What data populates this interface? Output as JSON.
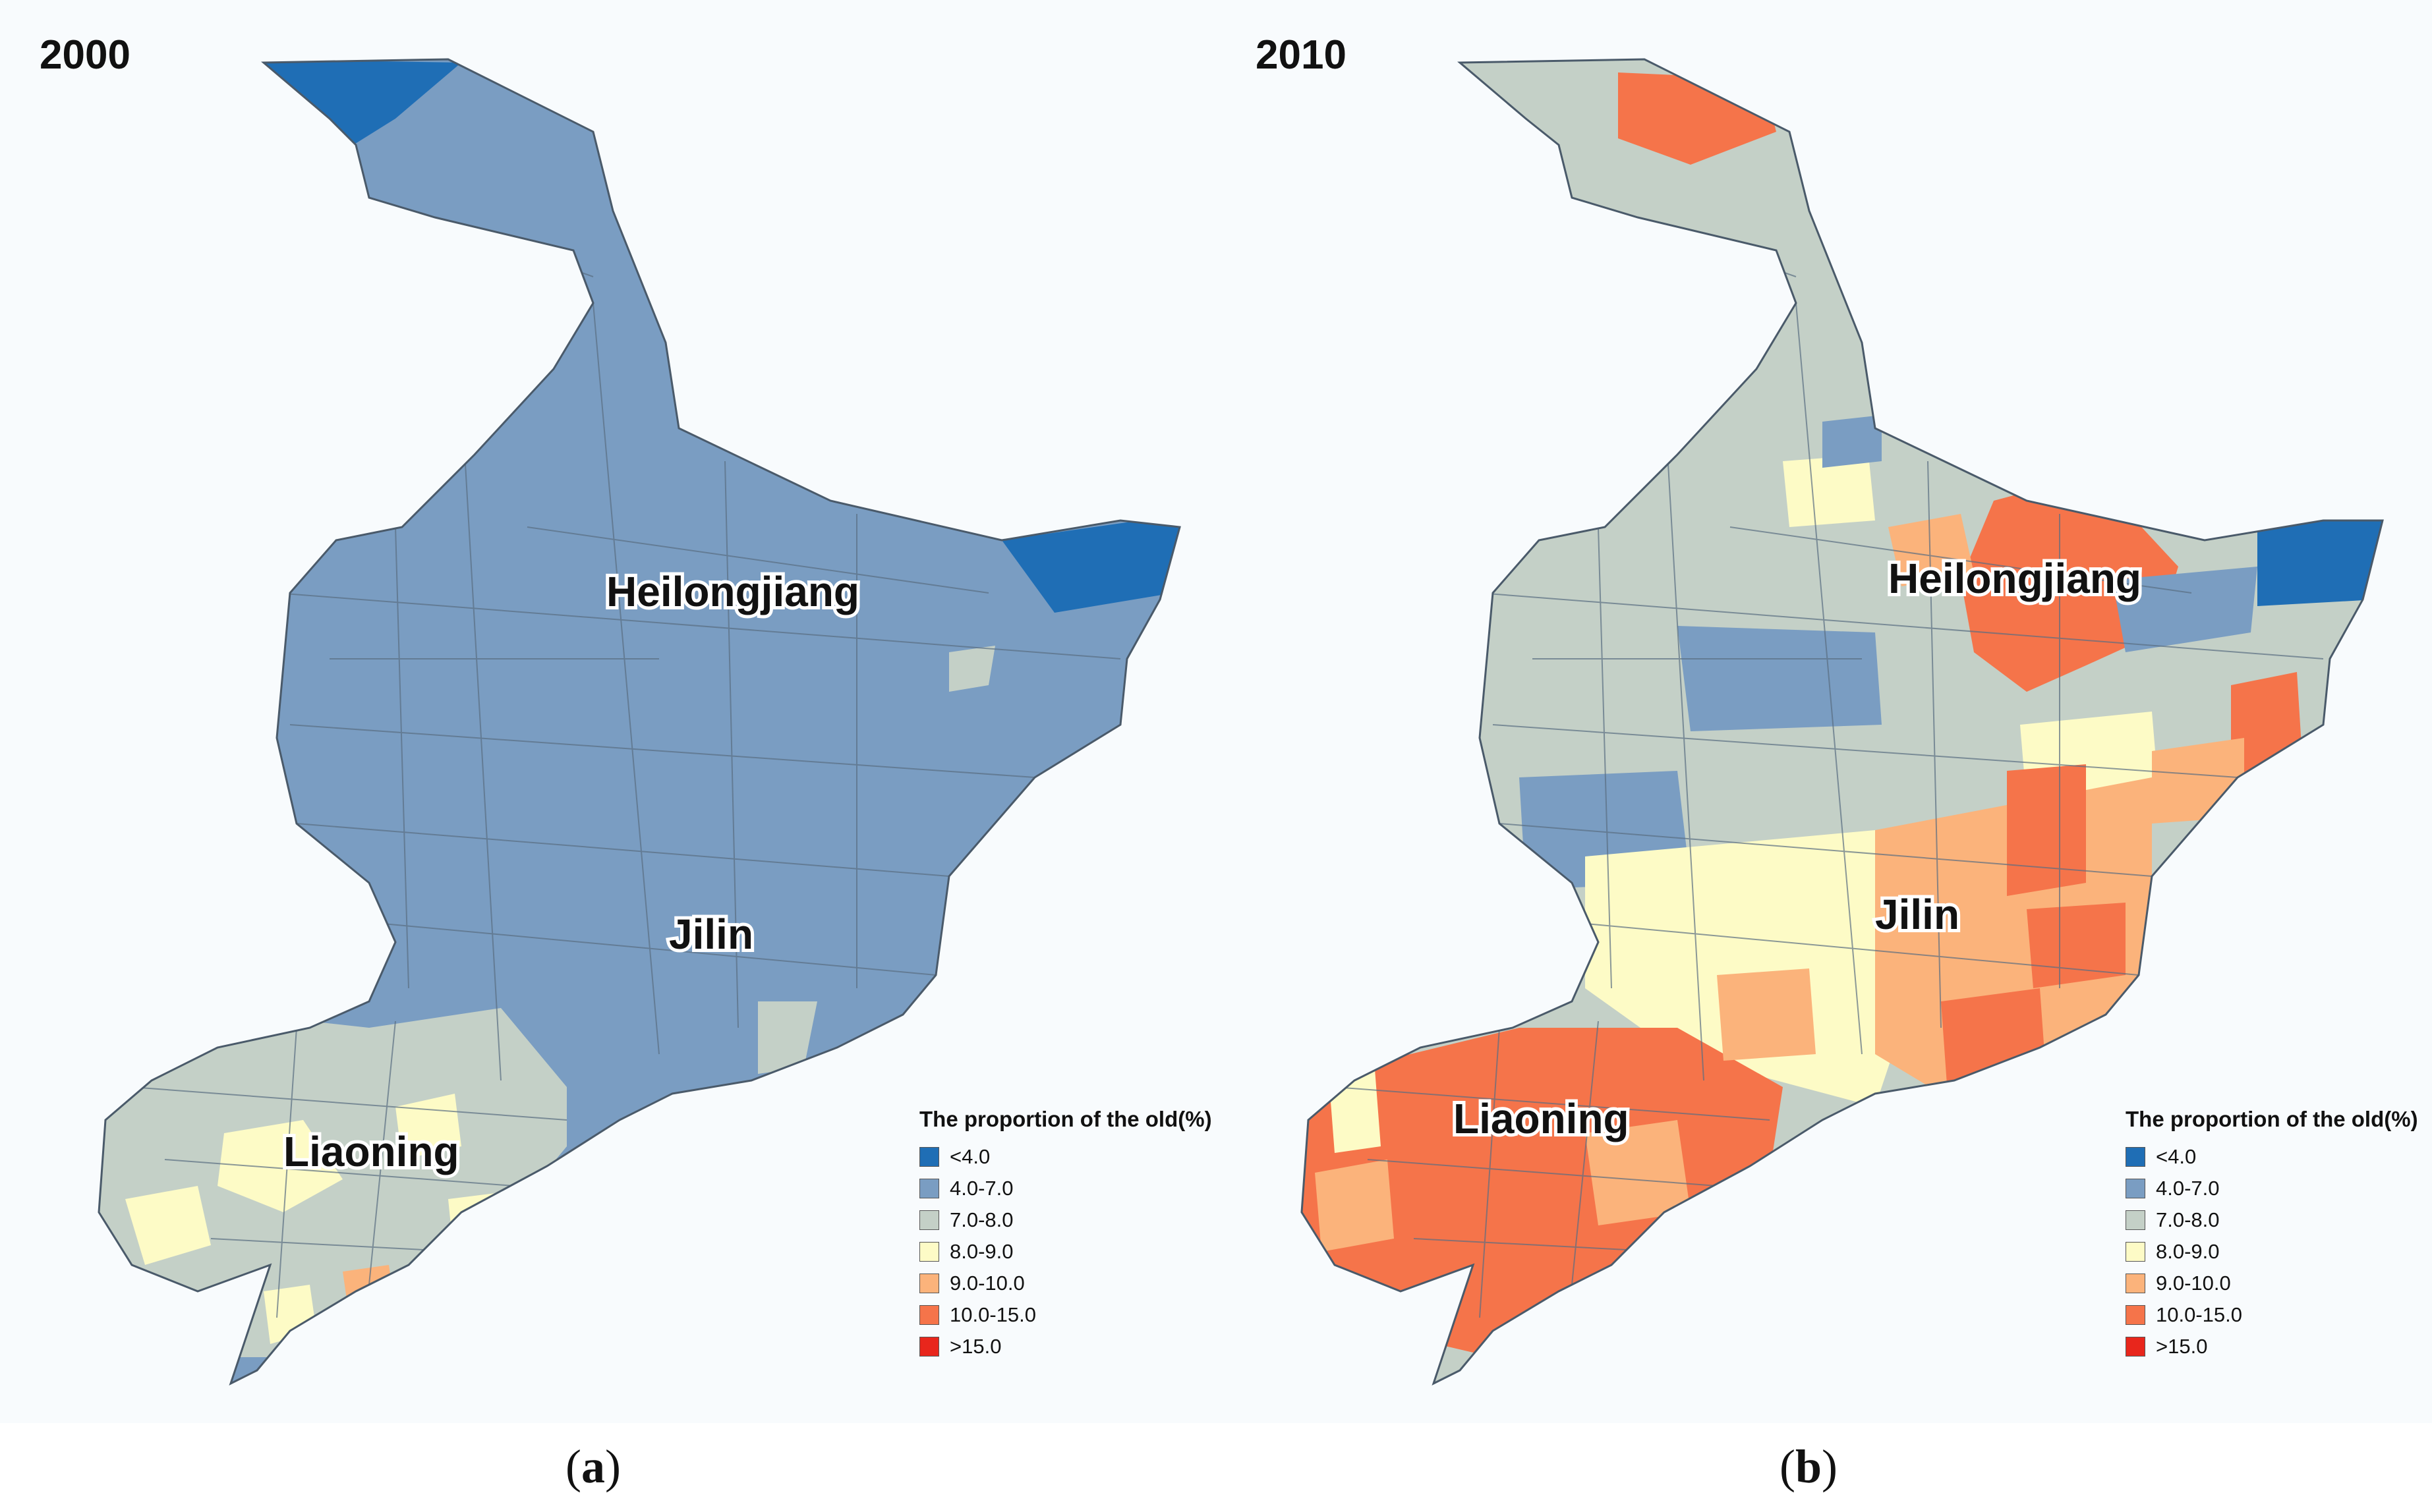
{
  "panels": [
    {
      "id": "a",
      "year": "2000",
      "caption_open": "(",
      "caption_letter": "a",
      "caption_close": ")",
      "labels": {
        "heilongjiang": "Heilongjiang",
        "jilin": "Jilin",
        "liaoning": "Liaoning"
      },
      "legend_title": "The proportion of the old(%)"
    },
    {
      "id": "b",
      "year": "2010",
      "caption_open": "(",
      "caption_letter": "b",
      "caption_close": ")",
      "labels": {
        "heilongjiang": "Heilongjiang",
        "jilin": "Jilin",
        "liaoning": "Liaoning"
      },
      "legend_title": "The proportion of the old(%)"
    }
  ],
  "legend_classes": [
    {
      "label": "<4.0",
      "color": "#1f6eb5"
    },
    {
      "label": "4.0-7.0",
      "color": "#7a9dc2"
    },
    {
      "label": "7.0-8.0",
      "color": "#c4d0c7"
    },
    {
      "label": "8.0-9.0",
      "color": "#fdfbc6"
    },
    {
      "label": "9.0-10.0",
      "color": "#fbb37b"
    },
    {
      "label": "10.0-15.0",
      "color": "#f5744a"
    },
    {
      "label": ">15.0",
      "color": "#e8261c"
    }
  ],
  "regions_2000": {
    "main": "4.0-7.0",
    "north_tip": "<4.0",
    "east_tip": "<4.0",
    "liaoning_base": "7.0-8.0",
    "patches_8_9": "8.0-9.0",
    "patch_9_10": "9.0-10.0"
  },
  "regions_2010": {
    "main": "7.0-8.0",
    "north_patch": "10.0-15.0",
    "east_tip": "<4.0",
    "heilongjiang_core": "10.0-15.0",
    "liaoning_core": "10.0-15.0",
    "jilin_mixed": "9.0-10.0",
    "band_8_9": "8.0-9.0",
    "patches_4_7": "4.0-7.0"
  }
}
